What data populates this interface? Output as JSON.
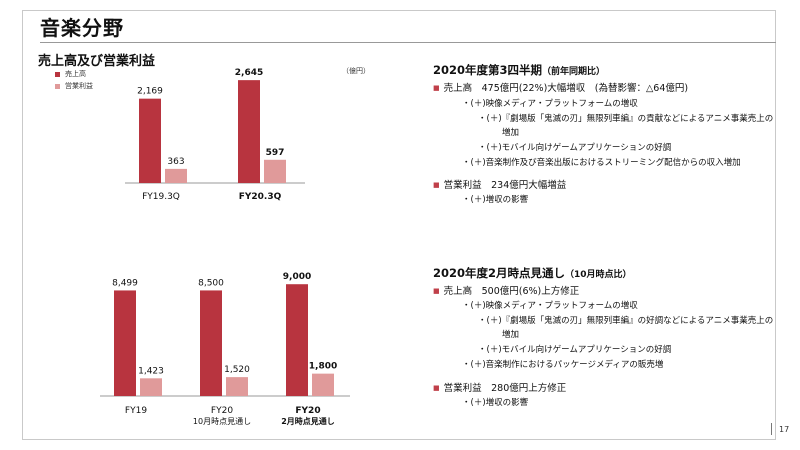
{
  "page": {
    "title": "音楽分野",
    "page_number": "17"
  },
  "chart_heading": "売上高及び営業利益",
  "legend": [
    {
      "label": "売上高",
      "color": "#b8343f"
    },
    {
      "label": "営業利益",
      "color": "#e09a9a"
    }
  ],
  "unit": "（億円）",
  "colors": {
    "sales": "#b8343f",
    "profit": "#e09a9a",
    "bullet": "#c0404a"
  },
  "chart_data": [
    {
      "type": "bar",
      "categories": [
        "FY19.3Q",
        "FY20.3Q"
      ],
      "bold_categories": [
        false,
        true
      ],
      "series": [
        {
          "name": "売上高",
          "values": [
            2169,
            2645
          ]
        },
        {
          "name": "営業利益",
          "values": [
            363,
            597
          ]
        }
      ],
      "labels": {
        "売上高": [
          "2,169",
          "2,645"
        ],
        "営業利益": [
          "363",
          "597"
        ]
      }
    },
    {
      "type": "bar",
      "categories": [
        [
          "FY19"
        ],
        [
          "FY20",
          "10月時点見通し"
        ],
        [
          "FY20",
          "2月時点見通し"
        ]
      ],
      "bold_categories": [
        false,
        false,
        true
      ],
      "series": [
        {
          "name": "売上高",
          "values": [
            8499,
            8500,
            9000
          ]
        },
        {
          "name": "営業利益",
          "values": [
            1423,
            1520,
            1800
          ]
        }
      ],
      "labels": {
        "売上高": [
          "8,499",
          "8,500",
          "9,000"
        ],
        "営業利益": [
          "1,423",
          "1,520",
          "1,800"
        ]
      }
    }
  ],
  "section1": {
    "title": "2020年度第3四半期",
    "title_note": "（前年同期比）",
    "sales_line": "売上高　475億円(22%)大幅増収　(為替影響：△64億円)",
    "sales_items": [
      "・(＋)映像メディア・プラットフォームの増収",
      "・(＋)『劇場版「鬼滅の刃」無限列車編』の貢献などによるアニメ事業売上の",
      "増加",
      "・(＋)モバイル向けゲームアプリケーションの好調",
      "・(＋)音楽制作及び音楽出版におけるストリーミング配信からの収入増加"
    ],
    "profit_line": "営業利益　234億円大幅増益",
    "profit_items": [
      "・(＋)増収の影響"
    ]
  },
  "section2": {
    "title": "2020年度2月時点見通し",
    "title_note": "（10月時点比）",
    "sales_line": "売上高　500億円(6%)上方修正",
    "sales_items": [
      "・(＋)映像メディア・プラットフォームの増収",
      "・(＋)『劇場版「鬼滅の刃」無限列車編』の好調などによるアニメ事業売上の",
      "増加",
      "・(＋)モバイル向けゲームアプリケーションの好調",
      "・(＋)音楽制作におけるパッケージメディアの販売増"
    ],
    "profit_line": "営業利益　280億円上方修正",
    "profit_items": [
      "・(＋)増収の影響"
    ]
  }
}
